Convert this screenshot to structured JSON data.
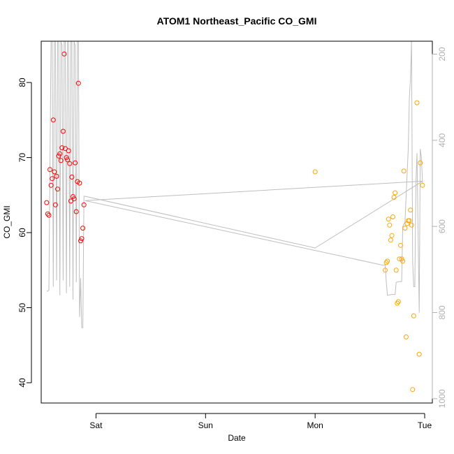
{
  "chart_data": {
    "type": "scatter",
    "title": "ATOM1 Northeast_Pacific CO_GMI",
    "xlabel": "Date",
    "ylabel": "CO_GMI",
    "x_ticks": [
      "Sat",
      "Sun",
      "Mon",
      "Tue"
    ],
    "x_tick_days": [
      1,
      2,
      3,
      4
    ],
    "xlim": [
      0.5,
      4.07
    ],
    "ylim": [
      37.3,
      85.5
    ],
    "y_ticks": [
      40,
      50,
      60,
      70,
      80
    ],
    "y2_ticks": [
      200,
      400,
      600,
      800,
      1000
    ],
    "y2lim": [
      1010,
      170
    ],
    "y2_reversed": true,
    "colors": {
      "series_red": "#ff0000",
      "series_orange": "#ffa500",
      "pressure_line": "#bebebe",
      "axis": "#000000",
      "axis_right": "#b0b0b0"
    },
    "series": [
      {
        "color_key": "series_red",
        "points": [
          [
            0.55,
            64.0
          ],
          [
            0.56,
            62.5
          ],
          [
            0.57,
            62.3
          ],
          [
            0.58,
            68.4
          ],
          [
            0.59,
            66.3
          ],
          [
            0.6,
            67.2
          ],
          [
            0.61,
            75.0
          ],
          [
            0.62,
            68.1
          ],
          [
            0.63,
            63.7
          ],
          [
            0.64,
            67.5
          ],
          [
            0.65,
            65.8
          ],
          [
            0.66,
            70.2
          ],
          [
            0.67,
            70.5
          ],
          [
            0.68,
            69.6
          ],
          [
            0.69,
            71.3
          ],
          [
            0.7,
            73.5
          ],
          [
            0.71,
            83.8
          ],
          [
            0.72,
            71.2
          ],
          [
            0.73,
            70.0
          ],
          [
            0.74,
            69.7
          ],
          [
            0.75,
            70.9
          ],
          [
            0.76,
            69.2
          ],
          [
            0.77,
            64.2
          ],
          [
            0.78,
            67.4
          ],
          [
            0.79,
            64.8
          ],
          [
            0.8,
            64.5
          ],
          [
            0.81,
            69.3
          ],
          [
            0.82,
            62.8
          ],
          [
            0.83,
            66.8
          ],
          [
            0.84,
            79.9
          ],
          [
            0.85,
            66.6
          ],
          [
            0.86,
            58.9
          ],
          [
            0.87,
            59.2
          ],
          [
            0.88,
            60.6
          ],
          [
            0.89,
            63.7
          ]
        ]
      },
      {
        "color_key": "series_orange",
        "points": [
          [
            3.0,
            68.1
          ],
          [
            3.64,
            55.0
          ],
          [
            3.65,
            56.0
          ],
          [
            3.66,
            56.2
          ],
          [
            3.67,
            61.8
          ],
          [
            3.68,
            61.0
          ],
          [
            3.69,
            59.0
          ],
          [
            3.7,
            59.6
          ],
          [
            3.71,
            62.1
          ],
          [
            3.72,
            64.7
          ],
          [
            3.73,
            65.3
          ],
          [
            3.74,
            55.0
          ],
          [
            3.75,
            50.6
          ],
          [
            3.76,
            50.8
          ],
          [
            3.77,
            56.5
          ],
          [
            3.78,
            58.3
          ],
          [
            3.79,
            56.5
          ],
          [
            3.8,
            56.2
          ],
          [
            3.81,
            68.2
          ],
          [
            3.82,
            60.6
          ],
          [
            3.83,
            46.1
          ],
          [
            3.84,
            61.2
          ],
          [
            3.85,
            61.6
          ],
          [
            3.86,
            61.6
          ],
          [
            3.87,
            63.0
          ],
          [
            3.88,
            61.0
          ],
          [
            3.89,
            39.1
          ],
          [
            3.9,
            48.9
          ],
          [
            3.93,
            77.3
          ],
          [
            3.95,
            43.8
          ],
          [
            3.96,
            69.3
          ],
          [
            3.98,
            66.3
          ]
        ]
      }
    ],
    "pressure_line": [
      [
        0.55,
        750
      ],
      [
        0.56,
        750
      ],
      [
        0.57,
        748
      ],
      [
        0.59,
        120
      ],
      [
        0.6,
        160
      ],
      [
        0.61,
        740
      ],
      [
        0.62,
        120
      ],
      [
        0.63,
        160
      ],
      [
        0.64,
        725
      ],
      [
        0.65,
        120
      ],
      [
        0.66,
        140
      ],
      [
        0.67,
        760
      ],
      [
        0.68,
        130
      ],
      [
        0.69,
        180
      ],
      [
        0.7,
        725
      ],
      [
        0.71,
        120
      ],
      [
        0.72,
        150
      ],
      [
        0.73,
        755
      ],
      [
        0.74,
        120
      ],
      [
        0.75,
        170
      ],
      [
        0.76,
        740
      ],
      [
        0.77,
        130
      ],
      [
        0.78,
        160
      ],
      [
        0.79,
        770
      ],
      [
        0.8,
        130
      ],
      [
        0.81,
        180
      ],
      [
        0.82,
        730
      ],
      [
        0.83,
        140
      ],
      [
        0.84,
        160
      ],
      [
        0.85,
        810
      ],
      [
        0.86,
        720
      ],
      [
        0.87,
        835
      ],
      [
        0.88,
        835
      ],
      [
        0.89,
        530
      ],
      [
        0.9,
        530
      ],
      [
        3.0,
        650
      ],
      [
        3.98,
        495
      ],
      [
        0.9,
        540
      ],
      [
        3.62,
        690
      ],
      [
        3.63,
        690
      ],
      [
        3.64,
        690
      ],
      [
        3.65,
        730
      ],
      [
        3.66,
        760
      ],
      [
        3.7,
        758
      ],
      [
        3.73,
        758
      ],
      [
        3.74,
        730
      ],
      [
        3.76,
        728
      ],
      [
        3.79,
        728
      ],
      [
        3.8,
        600
      ],
      [
        3.82,
        590
      ],
      [
        3.85,
        420
      ],
      [
        3.86,
        300
      ],
      [
        3.87,
        260
      ],
      [
        3.88,
        120
      ],
      [
        3.89,
        680
      ],
      [
        3.9,
        740
      ],
      [
        3.91,
        740
      ],
      [
        3.92,
        500
      ],
      [
        3.93,
        430
      ],
      [
        3.95,
        800
      ],
      [
        3.96,
        420
      ],
      [
        3.97,
        440
      ],
      [
        3.98,
        500
      ]
    ]
  }
}
